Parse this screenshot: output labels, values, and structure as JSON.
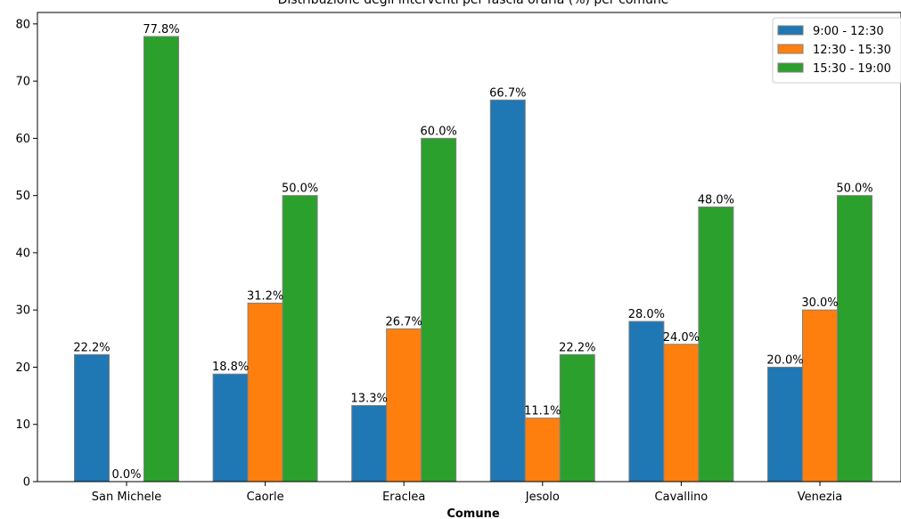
{
  "chart_data": {
    "type": "bar",
    "title": "Distribuzione degli interventi per fascia oraria (%) per comune",
    "xlabel": "Comune",
    "ylabel": "",
    "ylim": [
      0,
      82
    ],
    "yticks": [
      0,
      10,
      20,
      30,
      40,
      50,
      60,
      70,
      80
    ],
    "categories": [
      "San Michele",
      "Caorle",
      "Eraclea",
      "Jesolo",
      "Cavallino",
      "Venezia"
    ],
    "series": [
      {
        "name": "9:00 - 12:30",
        "color": "#1f77b4",
        "values": [
          22.2,
          18.8,
          13.3,
          66.7,
          28.0,
          20.0
        ],
        "labels": [
          "22.2%",
          "18.8%",
          "13.3%",
          "66.7%",
          "28.0%",
          "20.0%"
        ]
      },
      {
        "name": "12:30 - 15:30",
        "color": "#ff7f0e",
        "values": [
          0.0,
          31.2,
          26.7,
          11.1,
          24.0,
          30.0
        ],
        "labels": [
          "0.0%",
          "31.2%",
          "26.7%",
          "11.1%",
          "24.0%",
          "30.0%"
        ]
      },
      {
        "name": "15:30 - 19:00",
        "color": "#2ca02c",
        "values": [
          77.8,
          50.0,
          60.0,
          22.2,
          48.0,
          50.0
        ],
        "labels": [
          "77.8%",
          "50.0%",
          "60.0%",
          "22.2%",
          "48.0%",
          "50.0%"
        ]
      }
    ],
    "legend_position": "top-right",
    "grid": false,
    "bar_edge_color": "#808080"
  }
}
